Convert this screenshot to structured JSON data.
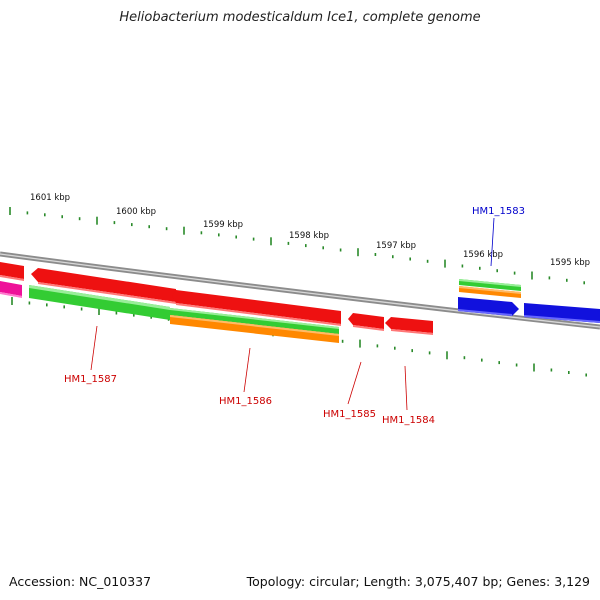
{
  "title": "Heliobacterium modesticaldum Ice1, complete genome",
  "footer": {
    "accession": "Accession: NC_010337",
    "summary": "Topology: circular; Length: 3,075,407 bp; Genes: 3,129"
  },
  "colors": {
    "backbone": "#8c8c8c",
    "ticks": "#2a8a2a",
    "gene_red": "#ee1111",
    "gene_green": "#33cc33",
    "gene_orange": "#ff8800",
    "gene_blue": "#1111dd",
    "gene_magenta": "#ee1199",
    "label_red": "#cc0000",
    "label_blue": "#0000cc"
  },
  "scale_labels": [
    {
      "text": "1601 kbp",
      "kbp": 1601
    },
    {
      "text": "1600 kbp",
      "kbp": 1600
    },
    {
      "text": "1599 kbp",
      "kbp": 1599
    },
    {
      "text": "1598 kbp",
      "kbp": 1598
    },
    {
      "text": "1597 kbp",
      "kbp": 1597
    },
    {
      "text": "1596 kbp",
      "kbp": 1596
    },
    {
      "text": "1595 kbp",
      "kbp": 1595
    }
  ],
  "genes": [
    {
      "label": "HM1_1587",
      "color": "label_red"
    },
    {
      "label": "HM1_1586",
      "color": "label_red"
    },
    {
      "label": "HM1_1585",
      "color": "label_red"
    },
    {
      "label": "HM1_1584",
      "color": "label_red"
    },
    {
      "label": "HM1_1583",
      "color": "label_blue"
    }
  ]
}
